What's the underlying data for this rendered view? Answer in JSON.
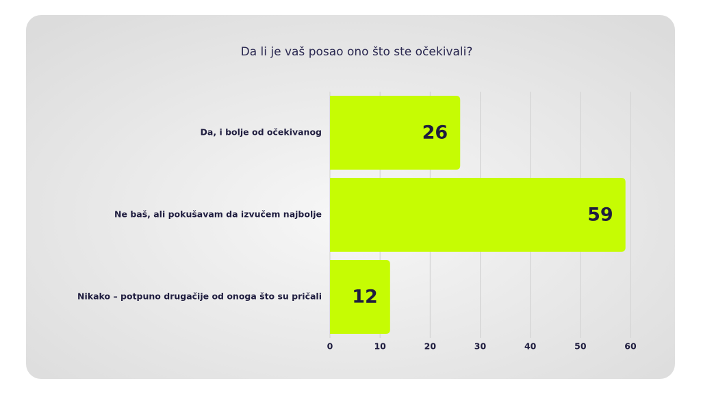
{
  "chart_data": {
    "type": "bar",
    "orientation": "horizontal",
    "title": "Da li je vaš posao ono što ste očekivali?",
    "categories": [
      "Da, i bolje od očekivanog",
      "Ne baš, ali pokušavam da izvučem najbolje",
      "Nikako – potpuno drugačije od onoga što su pričali"
    ],
    "values": [
      26,
      59,
      12
    ],
    "color": "#c6fc03",
    "xlim": [
      0,
      60
    ],
    "xticks": [
      0,
      10,
      20,
      30,
      40,
      50,
      60
    ],
    "grid": true
  }
}
